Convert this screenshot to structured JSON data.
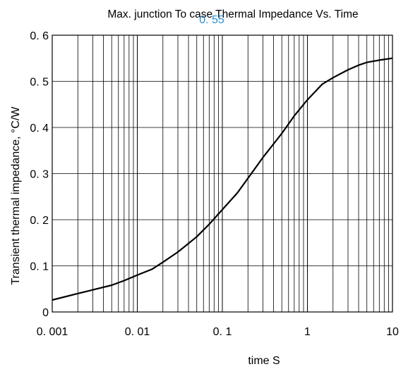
{
  "chart_data": {
    "type": "line",
    "title": "Max. junction To case Thermal Impedance Vs. Time",
    "annotation": "0. 55",
    "xlabel": "time   S",
    "ylabel": "Transient thermal impedance, °C/W",
    "x_scale": "log",
    "xlim": [
      0.001,
      10
    ],
    "ylim": [
      0,
      0.6
    ],
    "grid": true,
    "x_tick_labels": [
      "0. 001",
      "0. 01",
      "0. 1",
      "1",
      "10"
    ],
    "y_tick_labels": [
      "0",
      "0. 1",
      "0. 2",
      "0. 3",
      "0. 4",
      "0. 5",
      "0. 6"
    ],
    "line_color": "#000000",
    "annotation_color": "#2a8fd8",
    "series": [
      {
        "x": [
          0.001,
          0.002,
          0.003,
          0.005,
          0.007,
          0.01,
          0.015,
          0.02,
          0.03,
          0.05,
          0.07,
          0.1,
          0.15,
          0.2,
          0.3,
          0.5,
          0.7,
          1,
          1.5,
          2,
          3,
          4,
          5,
          7,
          10
        ],
        "y": [
          0.026,
          0.04,
          0.048,
          0.058,
          0.068,
          0.08,
          0.093,
          0.108,
          0.13,
          0.163,
          0.19,
          0.222,
          0.258,
          0.29,
          0.335,
          0.387,
          0.425,
          0.46,
          0.494,
          0.508,
          0.525,
          0.535,
          0.541,
          0.546,
          0.55
        ]
      }
    ]
  }
}
